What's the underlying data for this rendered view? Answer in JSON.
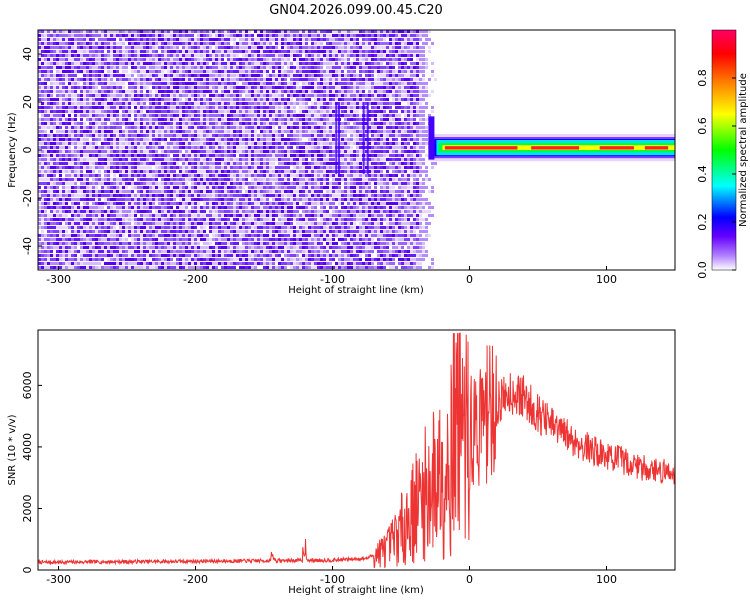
{
  "chart_data": [
    {
      "type": "heatmap",
      "title": "GN04.2026.099.00.45.C20",
      "xlabel": "Height of straight line (km)",
      "ylabel": "Frequency (Hz)",
      "xlim": [
        -315,
        150
      ],
      "ylim": [
        -50,
        50
      ],
      "xticks": [
        -300,
        -200,
        -100,
        0,
        100
      ],
      "yticks": [
        -40,
        -20,
        0,
        20,
        40
      ],
      "noise_region_x": [
        -315,
        -30
      ],
      "signal_band_hz": [
        -3,
        5
      ],
      "colorbar": {
        "label": "Normalized spectral amplitude",
        "range": [
          0,
          1
        ],
        "ticks": [
          0.0,
          0.2,
          0.4,
          0.6,
          0.8
        ],
        "tick_labels": [
          "0.0",
          "0.2",
          "0.4",
          "0.6",
          "0.8"
        ],
        "colors": [
          "#ffffff",
          "#6600ff",
          "#0000ff",
          "#00ffff",
          "#00ff00",
          "#ffff00",
          "#ff8000",
          "#ff0000",
          "#ff0066"
        ]
      }
    },
    {
      "type": "line",
      "title": "",
      "xlabel": "Height of straight line (km)",
      "ylabel": "SNR (10 * v/v)",
      "xlim": [
        -315,
        150
      ],
      "ylim": [
        0,
        7800
      ],
      "xticks": [
        -300,
        -200,
        -100,
        0,
        100
      ],
      "yticks": [
        0,
        2000,
        4000,
        6000
      ],
      "color": "#ee3333",
      "series": [
        {
          "name": "SNR",
          "x": [
            -315,
            -250,
            -150,
            -100,
            -75,
            -60,
            -50,
            -40,
            -30,
            -20,
            -10,
            0,
            10,
            20,
            30,
            40,
            50,
            60,
            70,
            80,
            90,
            100,
            110,
            120,
            130,
            140,
            150
          ],
          "values": [
            250,
            270,
            300,
            320,
            380,
            700,
            1300,
            2000,
            2600,
            3300,
            3900,
            4300,
            4900,
            5400,
            5800,
            5600,
            5100,
            4700,
            4400,
            4100,
            3900,
            3700,
            3600,
            3400,
            3300,
            3200,
            3200
          ]
        }
      ]
    }
  ]
}
